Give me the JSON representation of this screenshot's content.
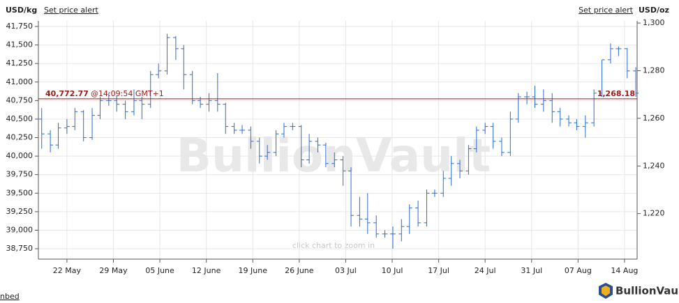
{
  "chart_data": {
    "type": "ohlc",
    "y_label": "USD/kg",
    "y2_label": "USD/oz",
    "alert_links": [
      "Set price alert",
      "Set price alert"
    ],
    "watermark": "BullionVault",
    "hint": "click chart to zoom in",
    "embed": "nbed",
    "logo": "BullionVault",
    "color": "#2a6ad0",
    "grid": true,
    "xlim": [
      137.7,
      227.9
    ],
    "xticks": [
      {
        "value": 142,
        "label": "22 May"
      },
      {
        "value": 149,
        "label": "29 May"
      },
      {
        "value": 156,
        "label": "05 June"
      },
      {
        "value": 163,
        "label": "12 June"
      },
      {
        "value": 170,
        "label": "19 June"
      },
      {
        "value": 177,
        "label": "26 June"
      },
      {
        "value": 184,
        "label": "03 Jul"
      },
      {
        "value": 191,
        "label": "10 Jul"
      },
      {
        "value": 198,
        "label": "17 Jul"
      },
      {
        "value": 205,
        "label": "24 Jul"
      },
      {
        "value": 212,
        "label": "31 Jul"
      },
      {
        "value": 219,
        "label": "07 Aug"
      },
      {
        "value": 226,
        "label": "14 Aug"
      }
    ],
    "ylim": [
      38610,
      41825
    ],
    "yticks": [
      {
        "value": 38750,
        "label": "38,750"
      },
      {
        "value": 39000,
        "label": "39,000"
      },
      {
        "value": 39250,
        "label": "39,250"
      },
      {
        "value": 39500,
        "label": "39,500"
      },
      {
        "value": 39750,
        "label": "39,750"
      },
      {
        "value": 40000,
        "label": "40,000"
      },
      {
        "value": 40250,
        "label": "40,250"
      },
      {
        "value": 40500,
        "label": "40,500"
      },
      {
        "value": 40750,
        "label": "40,750"
      },
      {
        "value": 41000,
        "label": "41,000"
      },
      {
        "value": 41250,
        "label": "41,250"
      },
      {
        "value": 41500,
        "label": "41,500"
      },
      {
        "value": 41750,
        "label": "41,750"
      }
    ],
    "y2lim": [
      1200.9,
      1300.9
    ],
    "y2ticks": [
      {
        "value": 1220,
        "label": "1,220"
      },
      {
        "value": 1240,
        "label": "1,240"
      },
      {
        "value": 1260,
        "label": "1,260"
      },
      {
        "value": 1280,
        "label": "1,280"
      },
      {
        "value": 1300,
        "label": "1,300"
      }
    ],
    "price_line": {
      "value": 40772.77,
      "label": "40,772.77",
      "time": "@14:09:54 GMT+1",
      "y2_value": 1268.18,
      "y2_label": "1,268.18",
      "color": "#a01818"
    },
    "x": [
      138.2,
      139.5,
      140.7,
      142.0,
      143.2,
      144.5,
      145.8,
      147.0,
      148.3,
      149.5,
      150.8,
      152.1,
      153.3,
      154.6,
      155.8,
      157.1,
      158.4,
      159.6,
      160.9,
      162.1,
      163.4,
      164.7,
      165.9,
      167.2,
      168.4,
      169.7,
      171.0,
      172.2,
      173.5,
      174.7,
      176.0,
      177.3,
      178.5,
      179.8,
      181.0,
      182.3,
      183.6,
      184.8,
      186.1,
      187.3,
      188.6,
      189.9,
      191.1,
      192.4,
      193.6,
      194.9,
      196.2,
      197.4,
      198.7,
      199.9,
      201.2,
      202.5,
      203.7,
      205.0,
      206.2,
      207.5,
      208.8,
      210.0,
      211.3,
      212.5,
      213.8,
      215.1,
      216.3,
      217.6,
      218.8,
      220.1,
      221.4,
      222.6,
      223.9,
      225.1,
      226.4,
      227.7
    ],
    "open": [
      40500,
      40300,
      40150,
      40380,
      40400,
      40600,
      40250,
      40550,
      40750,
      40750,
      40700,
      40600,
      40750,
      40700,
      41100,
      41150,
      41600,
      41450,
      41100,
      40750,
      40700,
      40750,
      40700,
      40400,
      40350,
      40350,
      40200,
      40000,
      40050,
      40300,
      40400,
      40400,
      39950,
      40200,
      40150,
      39900,
      39950,
      39800,
      39200,
      39150,
      39100,
      38950,
      38950,
      38950,
      39050,
      39300,
      39100,
      39500,
      39500,
      39700,
      39900,
      39800,
      40100,
      40350,
      40400,
      40200,
      40050,
      40500,
      40800,
      40800,
      40700,
      40750,
      40600,
      40500,
      40450,
      40400,
      40450,
      40850,
      41300,
      41450,
      41450,
      41150
    ],
    "high": [
      40650,
      40350,
      40450,
      40500,
      40650,
      40620,
      40650,
      40800,
      40850,
      40820,
      40750,
      40900,
      40800,
      41150,
      41250,
      41650,
      41620,
      41500,
      41150,
      40800,
      40850,
      41120,
      40720,
      40450,
      40420,
      40400,
      40250,
      40150,
      40350,
      40450,
      40450,
      40420,
      40300,
      40250,
      40180,
      40050,
      40000,
      39850,
      39450,
      39500,
      39200,
      39000,
      39050,
      39150,
      39350,
      39400,
      39550,
      39550,
      39800,
      40000,
      39950,
      40150,
      40400,
      40450,
      40450,
      40250,
      40600,
      40850,
      40870,
      40950,
      40900,
      40850,
      40650,
      40550,
      40500,
      40550,
      40900,
      41300,
      41520,
      41480,
      41460,
      41200
    ],
    "low": [
      40100,
      40050,
      40100,
      40300,
      40350,
      40200,
      40220,
      40500,
      40680,
      40600,
      40500,
      40550,
      40500,
      40650,
      41050,
      41100,
      41300,
      40900,
      40700,
      40650,
      40600,
      40600,
      40300,
      40300,
      40300,
      40100,
      39900,
      39950,
      40000,
      40250,
      40350,
      39850,
      39900,
      40050,
      39850,
      39850,
      39600,
      39050,
      39050,
      38950,
      38900,
      38900,
      38750,
      38850,
      38950,
      39050,
      39050,
      39450,
      39450,
      39600,
      39700,
      39750,
      40050,
      40300,
      40100,
      40000,
      40000,
      40450,
      40700,
      40650,
      40600,
      40450,
      40400,
      40400,
      40350,
      40250,
      40400,
      40800,
      41250,
      41350,
      41050,
      40800
    ],
    "close": [
      40300,
      40150,
      40380,
      40400,
      40600,
      40250,
      40550,
      40750,
      40750,
      40700,
      40600,
      40750,
      40700,
      41100,
      41150,
      41600,
      41450,
      41100,
      40750,
      40700,
      40750,
      40700,
      40400,
      40350,
      40350,
      40200,
      40000,
      40050,
      40300,
      40400,
      40400,
      39950,
      40200,
      40150,
      39900,
      39950,
      39800,
      39200,
      39150,
      39100,
      38950,
      38950,
      38950,
      39050,
      39300,
      39100,
      39500,
      39500,
      39700,
      39900,
      39800,
      40100,
      40350,
      40400,
      40200,
      40050,
      40500,
      40800,
      40800,
      40700,
      40750,
      40600,
      40500,
      40450,
      40400,
      40450,
      40850,
      41300,
      41450,
      41450,
      41150,
      40850
    ]
  }
}
